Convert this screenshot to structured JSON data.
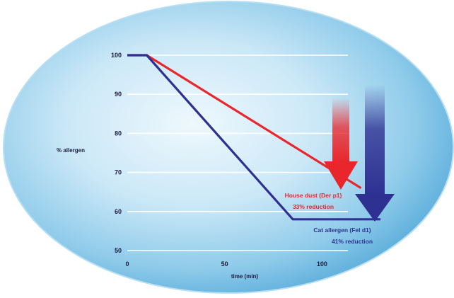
{
  "chart_data": {
    "type": "line",
    "title": "",
    "xlabel": "time (min)",
    "ylabel": "% allergen",
    "xlim": [
      0,
      130
    ],
    "ylim": [
      50,
      100
    ],
    "x_ticks": [
      0,
      50,
      100
    ],
    "y_ticks": [
      50,
      60,
      70,
      80,
      90,
      100
    ],
    "grid": true,
    "series": [
      {
        "name": "House dust (Der p1)",
        "color": "#e8262b",
        "x": [
          0,
          10,
          120
        ],
        "y": [
          100,
          100,
          66
        ],
        "label_line1": "House dust (Der p1)",
        "label_line2": "33% reduction"
      },
      {
        "name": "Cat allergen (Fel d1)",
        "color": "#2e3192",
        "x": [
          0,
          10,
          85,
          130
        ],
        "y": [
          100,
          100,
          58,
          58
        ],
        "label_line1": "Cat allergen (Fel d1)",
        "label_line2": "41% reduction"
      }
    ]
  },
  "colors": {
    "oval_light": "#e6f4fb",
    "oval_dark": "#6fb8de",
    "oval_edge": "#9fd0ea",
    "grid": "#ffffff",
    "axis_text": "#1c1c3c"
  }
}
